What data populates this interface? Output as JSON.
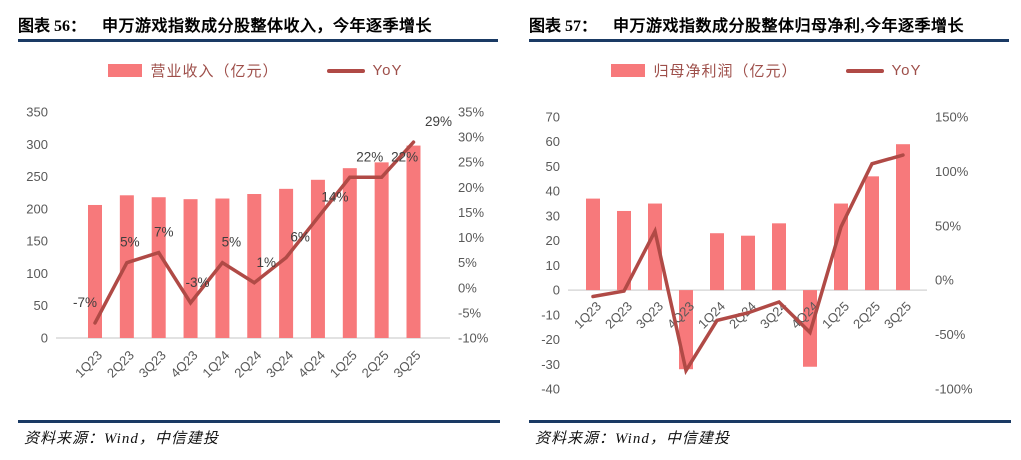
{
  "panels": [
    {
      "figure_label": "图表 56：",
      "title": "申万游戏指数成分股整体收入，今年逐季增长",
      "legend": {
        "bar": "营业收入（亿元）",
        "line": "YoY"
      },
      "source": "资料来源：Wind，中信建投"
    },
    {
      "figure_label": "图表 57：",
      "title": "申万游戏指数成分股整体归母净利,今年逐季增长",
      "legend": {
        "bar": "归母净利润（亿元）",
        "line": "YoY"
      },
      "source": "资料来源：Wind，中信建投"
    }
  ],
  "colors": {
    "bar": "#F7797B",
    "line": "#B04A46",
    "rule": "#1A3A64",
    "axis_text": "#595959",
    "data_label_text": "#3F3F3F",
    "legend_text": "#9E4F4A",
    "zero_line": "#D9D9D9"
  },
  "chart_data": [
    {
      "type": "bar",
      "title": "申万游戏指数成分股整体收入，今年逐季增长",
      "categories": [
        "1Q23",
        "2Q23",
        "3Q23",
        "4Q23",
        "1Q24",
        "2Q24",
        "3Q24",
        "4Q24",
        "1Q25",
        "2Q25",
        "3Q25"
      ],
      "series": [
        {
          "name": "营业收入（亿元）",
          "type": "bar",
          "axis": "left",
          "values": [
            206,
            221,
            218,
            215,
            216,
            223,
            231,
            245,
            263,
            272,
            298
          ]
        },
        {
          "name": "YoY",
          "type": "line",
          "axis": "right",
          "values": [
            -7,
            5,
            7,
            -3,
            5,
            1,
            6,
            14,
            22,
            22,
            29
          ],
          "labels": [
            "-7%",
            "5%",
            "7%",
            "-3%",
            "5%",
            "1%",
            "6%",
            "14%",
            "22%",
            "22%",
            "29%"
          ]
        }
      ],
      "left_axis": {
        "ticks": [
          0,
          50,
          100,
          150,
          200,
          250,
          300,
          350
        ],
        "suffix": ""
      },
      "right_axis": {
        "ticks": [
          -10,
          -5,
          0,
          5,
          10,
          15,
          20,
          25,
          30,
          35
        ],
        "suffix": "%"
      },
      "xlabel": "",
      "ylabel": "",
      "grid": false,
      "legend_position": "top"
    },
    {
      "type": "bar",
      "title": "申万游戏指数成分股整体归母净利,今年逐季增长",
      "categories": [
        "1Q23",
        "2Q23",
        "3Q23",
        "4Q23",
        "1Q24",
        "2Q24",
        "3Q24",
        "4Q24",
        "1Q25",
        "2Q25",
        "3Q25"
      ],
      "series": [
        {
          "name": "归母净利润（亿元）",
          "type": "bar",
          "axis": "left",
          "values": [
            37,
            32,
            35,
            -32,
            23,
            22,
            27,
            -31,
            35,
            46,
            59
          ]
        },
        {
          "name": "YoY",
          "type": "line",
          "axis": "right",
          "values": [
            -15,
            -10,
            45,
            -83,
            -37,
            -30,
            -20,
            -48,
            49,
            107,
            115
          ]
        }
      ],
      "left_axis": {
        "ticks": [
          -40,
          -30,
          -20,
          -10,
          0,
          10,
          20,
          30,
          40,
          50,
          60,
          70
        ],
        "suffix": ""
      },
      "right_axis": {
        "ticks": [
          -100,
          -50,
          0,
          50,
          100,
          150
        ],
        "suffix": "%"
      },
      "xlabel": "",
      "ylabel": "",
      "grid": false,
      "legend_position": "top"
    }
  ]
}
